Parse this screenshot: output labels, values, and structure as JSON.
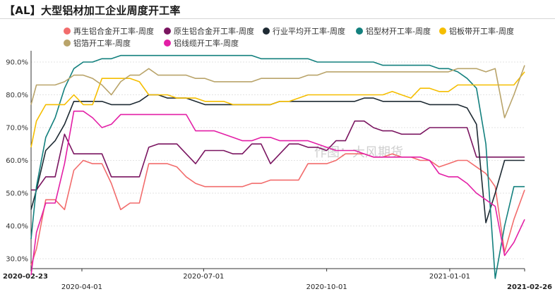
{
  "title": "【AL】大型铝材加工企业周度开工率",
  "watermark": "作图：大风期货",
  "colors": {
    "recycled_alloy": "#f26c6c",
    "primary_alloy": "#7a1560",
    "industry_avg": "#1e2a33",
    "profile": "#13807e",
    "plate_strip": "#f5be00",
    "foil": "#b9a46a",
    "wire_cable": "#e31fa6"
  },
  "chart_data": {
    "type": "line",
    "title": "【AL】大型铝材加工企业周度开工率",
    "ylim": [
      27,
      93
    ],
    "yticks": [
      30,
      40,
      50,
      60,
      70,
      80,
      90
    ],
    "ytick_labels": [
      "30.0%",
      "40.0%",
      "50.0%",
      "60.0%",
      "70.0%",
      "80.0%",
      "90.0%"
    ],
    "x": [
      "2020-02-23",
      "2020-02-27",
      "2020-03-05",
      "2020-03-12",
      "2020-03-19",
      "2020-03-26",
      "2020-04-02",
      "2020-04-09",
      "2020-04-16",
      "2020-04-23",
      "2020-04-30",
      "2020-05-07",
      "2020-05-14",
      "2020-05-21",
      "2020-05-28",
      "2020-06-04",
      "2020-06-11",
      "2020-06-18",
      "2020-06-25",
      "2020-07-02",
      "2020-07-09",
      "2020-07-16",
      "2020-07-23",
      "2020-07-30",
      "2020-08-06",
      "2020-08-13",
      "2020-08-20",
      "2020-08-27",
      "2020-09-03",
      "2020-09-10",
      "2020-09-17",
      "2020-09-24",
      "2020-10-01",
      "2020-10-08",
      "2020-10-15",
      "2020-10-22",
      "2020-10-29",
      "2020-11-05",
      "2020-11-12",
      "2020-11-19",
      "2020-11-26",
      "2020-12-03",
      "2020-12-10",
      "2020-12-17",
      "2020-12-24",
      "2020-12-31",
      "2021-01-07",
      "2021-01-14",
      "2021-01-21",
      "2021-01-28",
      "2021-02-04",
      "2021-02-11",
      "2021-02-18",
      "2021-02-26"
    ],
    "x_tick_labels": [
      {
        "label": "2020-02-23",
        "date": "2020-02-23",
        "bold": true
      },
      {
        "label": "2020-04-01",
        "date": "2020-04-01",
        "bold": false
      },
      {
        "label": "2020-07-01",
        "date": "2020-07-01",
        "bold": false
      },
      {
        "label": "2020-10-01",
        "date": "2020-10-01",
        "bold": false
      },
      {
        "label": "2021-01-01",
        "date": "2021-01-01",
        "bold": false
      },
      {
        "label": "2021-02-26",
        "date": "2021-02-26",
        "bold": true
      }
    ],
    "series": [
      {
        "key": "recycled_alloy",
        "name": "再生铝合金开工率-周度",
        "values": [
          28,
          33,
          48,
          48,
          45,
          57,
          60,
          59,
          59,
          53,
          45,
          47,
          47,
          59,
          59,
          59,
          58,
          55,
          53,
          52,
          52,
          52,
          52,
          52,
          53,
          53,
          54,
          54,
          54,
          54,
          59,
          59,
          59,
          60,
          62,
          62,
          62,
          61,
          61,
          62,
          61,
          61,
          60,
          60,
          58,
          59,
          60,
          60,
          58,
          56,
          52,
          32,
          42,
          51
        ]
      },
      {
        "key": "primary_alloy",
        "name": "原生铝合金开工率-周度",
        "values": [
          51,
          51,
          55,
          55,
          68,
          62,
          62,
          62,
          62,
          55,
          55,
          55,
          55,
          64,
          65,
          65,
          65,
          62,
          59,
          63,
          63,
          63,
          62,
          62,
          65,
          65,
          59,
          62,
          65,
          65,
          64,
          64,
          63,
          66,
          66,
          72,
          72,
          70,
          69,
          69,
          68,
          68,
          68,
          70,
          70,
          70,
          70,
          70,
          61,
          61,
          61,
          61,
          61,
          61
        ]
      },
      {
        "key": "industry_avg",
        "name": "行业平均开工率-周度",
        "values": [
          45,
          51,
          63,
          66,
          71,
          78,
          78,
          78,
          78,
          77,
          77,
          77,
          78,
          80,
          80,
          79,
          79,
          79,
          78,
          77,
          77,
          77,
          77,
          77,
          77,
          77,
          77,
          78,
          78,
          78,
          78,
          78,
          78,
          78,
          78,
          78,
          79,
          79,
          78,
          78,
          78,
          78,
          78,
          77,
          77,
          77,
          77,
          76,
          71,
          41,
          50,
          60,
          60,
          60
        ]
      },
      {
        "key": "profile",
        "name": "铝型材开工率-周度",
        "values": [
          36,
          52,
          67,
          73,
          82,
          88,
          90,
          90,
          91,
          91,
          92,
          92,
          92,
          92,
          92,
          92,
          92,
          92,
          92,
          92,
          92,
          92,
          92,
          92,
          92,
          91,
          91,
          91,
          91,
          91,
          91,
          90,
          90,
          90,
          90,
          90,
          90,
          90,
          89,
          89,
          89,
          89,
          89,
          89,
          88,
          88,
          87,
          85,
          82,
          65,
          24,
          40,
          52,
          52
        ]
      },
      {
        "key": "plate_strip",
        "name": "铝板带开工率-周度",
        "values": [
          64,
          72,
          77,
          77,
          77,
          80,
          77,
          77,
          85,
          85,
          85,
          85,
          84,
          80,
          80,
          80,
          79,
          79,
          79,
          78,
          78,
          78,
          77,
          77,
          77,
          77,
          77,
          78,
          78,
          79,
          80,
          80,
          80,
          80,
          80,
          80,
          80,
          80,
          80,
          81,
          80,
          79,
          82,
          82,
          81,
          81,
          83,
          83,
          83,
          83,
          83,
          83,
          83,
          87
        ]
      },
      {
        "key": "foil",
        "name": "铝箔开工率-周度",
        "values": [
          77,
          83,
          83,
          83,
          84,
          86,
          86,
          85,
          83,
          80,
          84,
          86,
          86,
          88,
          86,
          86,
          86,
          86,
          85,
          85,
          84,
          84,
          84,
          84,
          84,
          85,
          85,
          85,
          85,
          85,
          86,
          86,
          87,
          87,
          87,
          87,
          87,
          87,
          87,
          87,
          87,
          87,
          87,
          87,
          87,
          87,
          88,
          88,
          88,
          87,
          88,
          73,
          80,
          89
        ]
      },
      {
        "key": "wire_cable",
        "name": "铝线缆开工率-周度",
        "values": [
          25,
          38,
          47,
          47,
          59,
          75,
          75,
          73,
          70,
          71,
          74,
          74,
          74,
          74,
          74,
          74,
          74,
          74,
          69,
          69,
          69,
          68,
          67,
          66,
          66,
          67,
          67,
          66,
          66,
          66,
          66,
          65,
          64,
          63,
          63,
          63,
          62,
          61,
          61,
          61,
          61,
          61,
          61,
          60,
          56,
          55,
          55,
          53,
          50,
          48,
          46,
          31,
          35,
          42
        ]
      }
    ]
  }
}
